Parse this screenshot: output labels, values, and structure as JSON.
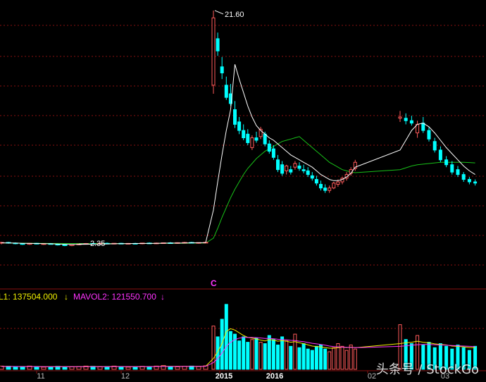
{
  "chart_data": [
    {
      "type": "candlestick",
      "title": "",
      "annotations": {
        "high_label": "21.60",
        "low_label": "2.35",
        "marker": "C"
      },
      "ylim": [
        0,
        22
      ],
      "grid": true,
      "colors": {
        "up": "#ff5a5a",
        "down": "#00ffff",
        "ma_short": "#ffffff",
        "ma_long": "#18c018",
        "grid": "#8a1010",
        "frame": "#8a1010"
      },
      "ohlc": [
        [
          2.6,
          2.7,
          2.5,
          2.65
        ],
        [
          2.65,
          2.7,
          2.55,
          2.6
        ],
        [
          2.6,
          2.65,
          2.5,
          2.55
        ],
        [
          2.55,
          2.6,
          2.45,
          2.5
        ],
        [
          2.5,
          2.6,
          2.45,
          2.58
        ],
        [
          2.58,
          2.62,
          2.5,
          2.52
        ],
        [
          2.52,
          2.58,
          2.45,
          2.55
        ],
        [
          2.55,
          2.6,
          2.48,
          2.5
        ],
        [
          2.5,
          2.55,
          2.4,
          2.45
        ],
        [
          2.45,
          2.5,
          2.35,
          2.4
        ],
        [
          2.4,
          2.5,
          2.35,
          2.48
        ],
        [
          2.48,
          2.55,
          2.42,
          2.52
        ],
        [
          2.52,
          2.6,
          2.48,
          2.56
        ],
        [
          2.56,
          2.62,
          2.5,
          2.54
        ],
        [
          2.54,
          2.6,
          2.5,
          2.58
        ],
        [
          2.58,
          2.64,
          2.52,
          2.55
        ],
        [
          2.55,
          2.6,
          2.5,
          2.58
        ],
        [
          2.58,
          2.62,
          2.52,
          2.54
        ],
        [
          2.54,
          2.6,
          2.5,
          2.57
        ],
        [
          2.57,
          2.62,
          2.52,
          2.56
        ],
        [
          2.56,
          2.62,
          2.5,
          2.6
        ],
        [
          2.6,
          2.66,
          2.55,
          2.58
        ],
        [
          2.58,
          2.64,
          2.52,
          2.6
        ],
        [
          2.6,
          2.65,
          2.55,
          2.62
        ],
        [
          2.62,
          2.68,
          2.56,
          2.6
        ],
        [
          2.6,
          2.66,
          2.55,
          2.63
        ],
        [
          2.63,
          2.7,
          2.58,
          2.65
        ],
        [
          2.65,
          2.7,
          2.58,
          2.6
        ],
        [
          2.6,
          2.66,
          2.55,
          2.64
        ],
        [
          2.64,
          2.7,
          2.6,
          2.66
        ],
        [
          15.5,
          21.6,
          14.8,
          21.0
        ],
        [
          19.3,
          19.8,
          17.9,
          18.3
        ],
        [
          17.0,
          17.8,
          16.0,
          16.5
        ],
        [
          15.5,
          16.2,
          14.3,
          14.5
        ],
        [
          14.8,
          15.6,
          13.8,
          14.0
        ],
        [
          13.5,
          14.2,
          12.0,
          12.3
        ],
        [
          12.5,
          12.9,
          11.5,
          11.8
        ],
        [
          11.8,
          12.3,
          11.0,
          11.2
        ],
        [
          11.5,
          11.9,
          10.6,
          10.8
        ],
        [
          10.4,
          11.4,
          10.2,
          11.2
        ],
        [
          11.2,
          11.7,
          10.8,
          11.0
        ],
        [
          11.3,
          12.1,
          11.1,
          11.9
        ],
        [
          11.5,
          11.7,
          10.5,
          10.7
        ],
        [
          10.7,
          11.0,
          9.9,
          10.1
        ],
        [
          10.3,
          10.6,
          9.4,
          9.6
        ],
        [
          9.4,
          9.8,
          8.4,
          8.6
        ],
        [
          9.0,
          9.3,
          8.1,
          8.3
        ],
        [
          8.5,
          9.0,
          8.2,
          8.9
        ],
        [
          8.6,
          8.9,
          8.2,
          8.4
        ],
        [
          8.8,
          9.3,
          8.6,
          9.1
        ],
        [
          8.9,
          9.2,
          8.5,
          8.7
        ],
        [
          8.6,
          9.0,
          8.3,
          8.5
        ],
        [
          8.5,
          8.8,
          8.0,
          8.2
        ],
        [
          8.1,
          8.4,
          7.7,
          7.9
        ],
        [
          7.8,
          8.1,
          7.3,
          7.5
        ],
        [
          7.4,
          7.7,
          6.9,
          7.1
        ],
        [
          7.1,
          7.4,
          6.7,
          6.9
        ],
        [
          6.9,
          7.3,
          6.7,
          7.1
        ],
        [
          7.1,
          7.6,
          7.0,
          7.5
        ],
        [
          7.4,
          7.8,
          7.2,
          7.6
        ],
        [
          7.6,
          8.0,
          7.4,
          7.9
        ],
        [
          7.9,
          8.4,
          7.7,
          8.2
        ],
        [
          8.3,
          8.8,
          8.1,
          8.6
        ],
        [
          8.7,
          9.4,
          8.5,
          9.2
        ],
        [
          12.8,
          13.4,
          12.5,
          12.9
        ],
        [
          12.8,
          13.2,
          12.3,
          12.6
        ],
        [
          12.6,
          13.0,
          12.2,
          12.4
        ],
        [
          11.6,
          12.6,
          11.2,
          12.3
        ],
        [
          12.4,
          12.9,
          11.6,
          11.8
        ],
        [
          11.8,
          12.1,
          10.9,
          11.1
        ],
        [
          10.9,
          11.2,
          10.0,
          10.2
        ],
        [
          10.2,
          10.5,
          9.2,
          9.4
        ],
        [
          9.4,
          9.7,
          8.8,
          9.0
        ],
        [
          9.0,
          9.3,
          8.2,
          8.4
        ],
        [
          8.6,
          8.9,
          8.0,
          8.2
        ],
        [
          8.2,
          8.4,
          7.6,
          7.8
        ],
        [
          7.8,
          8.0,
          7.4,
          7.6
        ],
        [
          7.6,
          7.8,
          7.3,
          7.5
        ]
      ],
      "ma_short": [
        2.62,
        2.61,
        2.6,
        2.58,
        2.57,
        2.56,
        2.55,
        2.54,
        2.52,
        2.5,
        2.49,
        2.49,
        2.5,
        2.51,
        2.52,
        2.53,
        2.54,
        2.55,
        2.55,
        2.56,
        2.57,
        2.57,
        2.58,
        2.59,
        2.6,
        2.6,
        2.61,
        2.62,
        2.62,
        2.63,
        5.3,
        7.6,
        9.8,
        11.8,
        13.5,
        17.2,
        16.0,
        14.9,
        13.8,
        12.9,
        12.2,
        11.8,
        11.5,
        11.2,
        11.0,
        10.7,
        10.4,
        10.1,
        9.8,
        9.6,
        9.4,
        9.2,
        9.0,
        8.8,
        8.5,
        8.2,
        8.0,
        7.8,
        7.7,
        7.7,
        7.8,
        8.0,
        8.3,
        8.8,
        10.2,
        11.0,
        11.8,
        12.3,
        12.4,
        12.1,
        11.6,
        11.0,
        10.4,
        9.9,
        9.4,
        8.9,
        8.5,
        8.2
      ],
      "ma_long": [
        2.6,
        2.6,
        2.6,
        2.59,
        2.59,
        2.58,
        2.58,
        2.57,
        2.57,
        2.56,
        2.56,
        2.56,
        2.56,
        2.56,
        2.56,
        2.56,
        2.56,
        2.56,
        2.56,
        2.56,
        2.56,
        2.57,
        2.57,
        2.57,
        2.58,
        2.58,
        2.58,
        2.59,
        2.59,
        2.6,
        3.0,
        3.8,
        4.7,
        5.5,
        6.3,
        7.0,
        7.6,
        8.2,
        8.7,
        9.1,
        9.5,
        9.8,
        10.1,
        10.3,
        10.5,
        10.7,
        10.9,
        11.0,
        11.1,
        11.2,
        11.3,
        11.0,
        10.7,
        10.4,
        10.1,
        9.8,
        9.5,
        9.2,
        9.0,
        8.8,
        8.6,
        8.5,
        8.4,
        8.35,
        8.6,
        8.75,
        8.9,
        9.0,
        9.05,
        9.1,
        9.15,
        9.2,
        9.2,
        9.2,
        9.2,
        9.2,
        9.18,
        9.15
      ]
    },
    {
      "type": "bar",
      "title": "",
      "legend": [
        {
          "label": "L1: 137504.000",
          "color": "#f0f000",
          "arrow": "↓"
        },
        {
          "label": "MAVOL2: 121550.700",
          "color": "#ff33ff",
          "arrow": "↓"
        }
      ],
      "colors": {
        "up": "#ff5a5a",
        "down": "#00ffff",
        "ma1": "#f0f000",
        "ma2": "#ff33ff"
      },
      "ylim": [
        0,
        250000
      ],
      "volumes": [
        12000,
        11000,
        9000,
        10000,
        12000,
        9000,
        8000,
        9000,
        11000,
        8000,
        9000,
        10000,
        12000,
        11000,
        9000,
        10000,
        12000,
        9000,
        8000,
        9000,
        11000,
        10000,
        12000,
        14000,
        10000,
        9000,
        11000,
        12000,
        10000,
        13000,
        160000,
        120000,
        185000,
        240000,
        140000,
        130000,
        105000,
        120000,
        100000,
        110000,
        115000,
        100000,
        95000,
        125000,
        110000,
        90000,
        120000,
        105000,
        85000,
        130000,
        80000,
        95000,
        75000,
        70000,
        85000,
        90000,
        75000,
        65000,
        80000,
        95000,
        85000,
        70000,
        90000,
        75000,
        165000,
        110000,
        95000,
        125000,
        90000,
        100000,
        80000,
        95000,
        85000,
        75000,
        90000,
        80000,
        70000,
        85000
      ],
      "vol_up": [
        true,
        false,
        false,
        false,
        true,
        false,
        true,
        false,
        false,
        false,
        true,
        true,
        true,
        false,
        true,
        false,
        true,
        false,
        true,
        false,
        true,
        false,
        true,
        true,
        false,
        true,
        true,
        false,
        true,
        true,
        true,
        false,
        false,
        false,
        false,
        false,
        false,
        false,
        false,
        true,
        false,
        true,
        false,
        false,
        false,
        false,
        false,
        true,
        false,
        true,
        false,
        false,
        false,
        false,
        false,
        false,
        false,
        true,
        true,
        true,
        true,
        true,
        true,
        true,
        true,
        false,
        false,
        true,
        false,
        false,
        false,
        false,
        false,
        false,
        false,
        false,
        false,
        false
      ],
      "mavol1": [
        11000,
        11000,
        10500,
        10200,
        10500,
        10300,
        10000,
        9800,
        10000,
        9800,
        9600,
        9700,
        10000,
        10200,
        10100,
        10000,
        10300,
        10200,
        10000,
        9800,
        10000,
        10200,
        10500,
        11000,
        11200,
        11000,
        11200,
        11300,
        11200,
        11500,
        40000,
        65000,
        95000,
        140000,
        150000,
        145000,
        135000,
        125000,
        118000,
        115000,
        112000,
        108000,
        105000,
        110000,
        108000,
        104000,
        106000,
        104000,
        100000,
        102000,
        98000,
        95000,
        90000,
        86000,
        84000,
        83000,
        80000,
        78000,
        78000,
        80000,
        82000,
        80000,
        82000,
        80000,
        95000,
        98000,
        100000,
        104000,
        100000,
        98000,
        94000,
        92000,
        90000,
        86000,
        85000,
        83000,
        80000,
        80000
      ],
      "mavol2": [
        10500,
        10400,
        10300,
        10200,
        10200,
        10100,
        10000,
        9900,
        9900,
        9800,
        9800,
        9800,
        9900,
        10000,
        10000,
        10000,
        10100,
        10100,
        10100,
        10000,
        10100,
        10100,
        10200,
        10400,
        10500,
        10500,
        10600,
        10700,
        10700,
        10900,
        25000,
        40000,
        60000,
        85000,
        100000,
        110000,
        115000,
        118000,
        118000,
        118000,
        117000,
        116000,
        114000,
        114000,
        113000,
        111000,
        110000,
        109000,
        107000,
        106000,
        104000,
        102000,
        99000,
        96000,
        94000,
        92000,
        89000,
        86000,
        84000,
        83000,
        82000,
        81000,
        81000,
        80000,
        85000,
        87000,
        89000,
        91000,
        92000,
        92000,
        91000,
        90000,
        89000,
        88000,
        87000,
        86000,
        85000,
        84000
      ]
    }
  ],
  "x_axis": {
    "ticks": [
      "11",
      "12",
      "2015",
      "2016",
      "02",
      "03"
    ],
    "bold": [
      false,
      false,
      true,
      true,
      false,
      false
    ]
  },
  "watermark": "头条号 / StockGo"
}
